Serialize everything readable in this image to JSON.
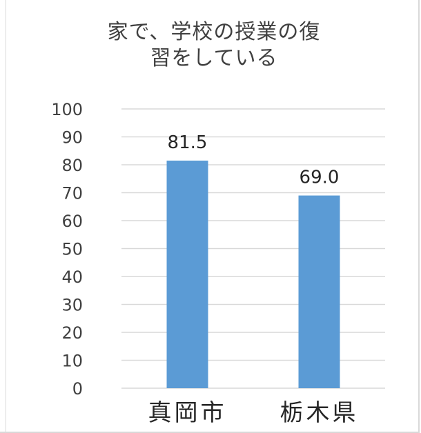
{
  "chart_data": {
    "type": "bar",
    "title_lines": [
      "家で、学校の授業の復",
      "習をしている"
    ],
    "categories": [
      "真岡市",
      "栃木県"
    ],
    "values": [
      81.5,
      69.0
    ],
    "data_labels": [
      "81.5",
      "69.0"
    ],
    "yticks": [
      "0",
      "10",
      "20",
      "30",
      "40",
      "50",
      "60",
      "70",
      "80",
      "90",
      "100"
    ],
    "ylim": [
      0,
      100
    ],
    "grid": true,
    "legend": "none",
    "bar_color": "#5b9bd5",
    "grid_color": "#d9d9d9"
  }
}
